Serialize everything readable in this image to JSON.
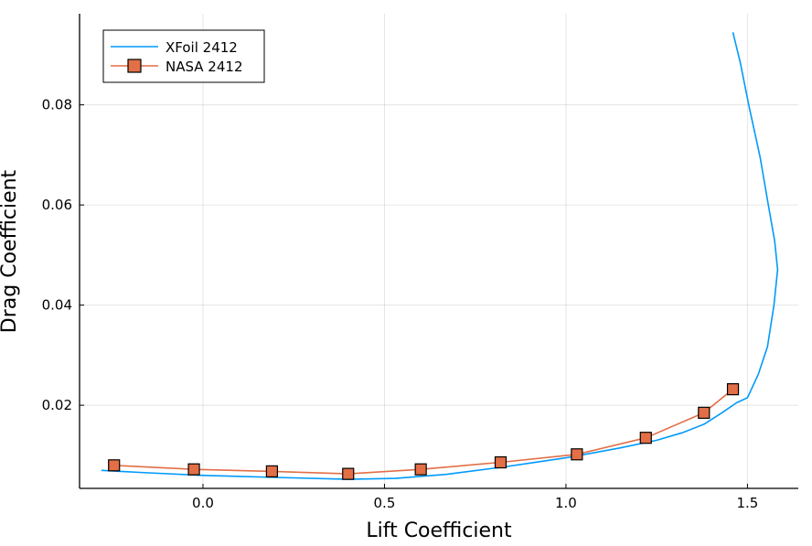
{
  "chart_data": {
    "type": "line",
    "title": "",
    "xlabel": "Lift Coefficient",
    "ylabel": "Drag Coefficient",
    "xlim": [
      -0.34,
      1.64
    ],
    "ylim": [
      0.0034,
      0.0982
    ],
    "xticks": [
      0.0,
      0.5,
      1.0,
      1.5
    ],
    "xtick_labels": [
      "0.0",
      "0.5",
      "1.0",
      "1.5"
    ],
    "yticks": [
      0.02,
      0.04,
      0.06,
      0.08
    ],
    "ytick_labels": [
      "0.02",
      "0.04",
      "0.06",
      "0.08"
    ],
    "grid": true,
    "legend_position": "top-left",
    "series": [
      {
        "name": "XFoil 2412",
        "color": "#009AFA",
        "marker": "none",
        "x": [
          -0.28,
          -0.15,
          0.0,
          0.2,
          0.4,
          0.53,
          0.67,
          0.83,
          1.0,
          1.15,
          1.25,
          1.32,
          1.38,
          1.43,
          1.47,
          1.5,
          1.53,
          1.555,
          1.573,
          1.583,
          1.575,
          1.56,
          1.535,
          1.505,
          1.48,
          1.46
        ],
        "y": [
          0.007,
          0.0065,
          0.006,
          0.0056,
          0.0052,
          0.0054,
          0.0062,
          0.0077,
          0.0095,
          0.0115,
          0.013,
          0.0145,
          0.0162,
          0.0185,
          0.0205,
          0.0215,
          0.0262,
          0.0317,
          0.04,
          0.0471,
          0.0528,
          0.059,
          0.0695,
          0.0795,
          0.0885,
          0.0945
        ]
      },
      {
        "name": "NASA 2412",
        "color": "#E26F46",
        "marker": "square",
        "x": [
          -0.245,
          -0.025,
          0.19,
          0.4,
          0.6,
          0.82,
          1.03,
          1.22,
          1.38,
          1.46
        ],
        "y": [
          0.008,
          0.0072,
          0.0068,
          0.0063,
          0.0072,
          0.0086,
          0.0102,
          0.0135,
          0.0185,
          0.0232
        ]
      }
    ]
  }
}
